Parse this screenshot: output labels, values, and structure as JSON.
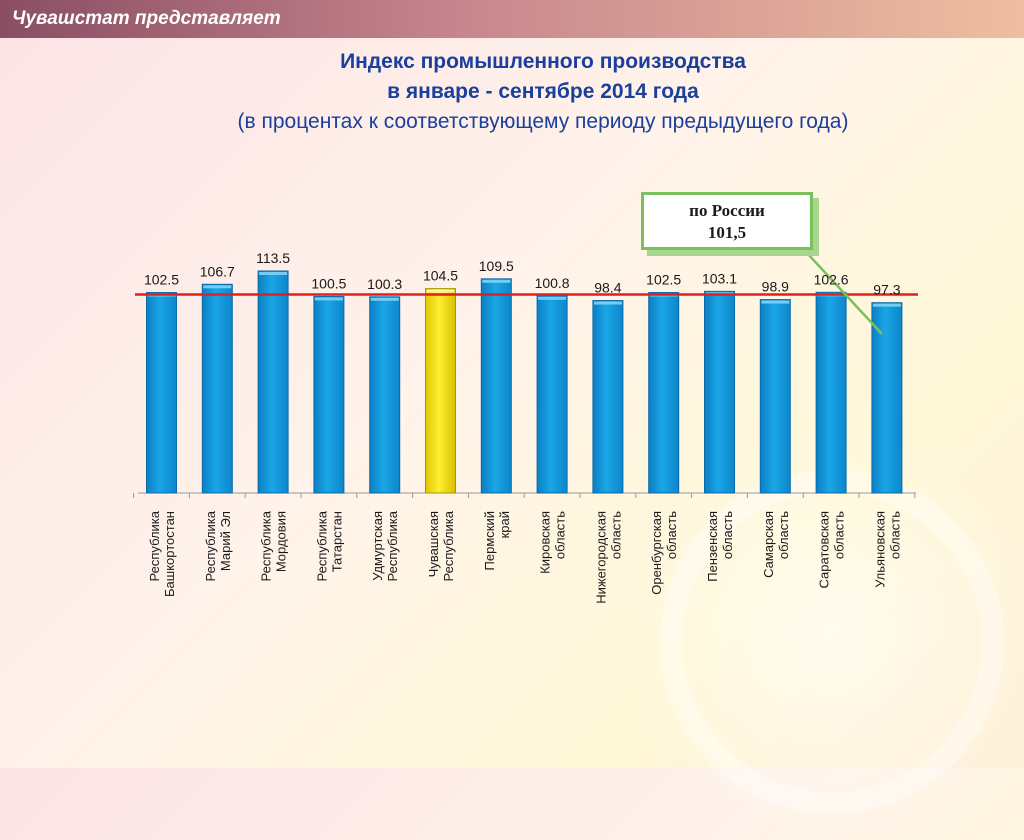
{
  "header": {
    "title": "Чувашстат представляет"
  },
  "titles": {
    "line1": "Индекс промышленного производства",
    "line2": "в январе - сентябре 2014 года",
    "line3": "(в процентах к соответствующему периоду предыдущего года)"
  },
  "russia_callout": {
    "label": "по России",
    "value": "101,5"
  },
  "colors": {
    "bar": "#1aa6e6",
    "highlight_bar": "#ffee33",
    "reference_line": "#e02020",
    "title": "#1a3f9c"
  },
  "chart_data": {
    "type": "bar",
    "categories": [
      [
        "Республика",
        "Башкортостан"
      ],
      [
        "Республика",
        "Марий Эл"
      ],
      [
        "Республика",
        "Мордовия"
      ],
      [
        "Республика",
        "Татарстан"
      ],
      [
        "Удмуртская",
        "Республика"
      ],
      [
        "Чувашская",
        "Республика"
      ],
      [
        "Пермский",
        "край"
      ],
      [
        "Кировская",
        "область"
      ],
      [
        "Нижегородская",
        "область"
      ],
      [
        "Оренбургская",
        "область"
      ],
      [
        "Пензенская",
        "область"
      ],
      [
        "Самарская",
        "область"
      ],
      [
        "Саратовская",
        "область"
      ],
      [
        "Ульяновская",
        "область"
      ]
    ],
    "values": [
      102.5,
      106.7,
      113.5,
      100.5,
      100.3,
      104.5,
      109.5,
      100.8,
      98.4,
      102.5,
      103.1,
      98.9,
      102.6,
      97.3
    ],
    "value_labels": [
      "102.5",
      "106.7",
      "113.5",
      "100.5",
      "100.3",
      "104.5",
      "109.5",
      "100.8",
      "98.4",
      "102.5",
      "103.1",
      "98.9",
      "102.6",
      "97.3"
    ],
    "highlight_index": 5,
    "reference_value": 101.5,
    "title": "Индекс промышленного производства в январе - сентябре 2014 года",
    "subtitle": "(в процентах к соответствующему периоду предыдущего года)",
    "xlabel": "",
    "ylabel": "",
    "grid": false,
    "legend": "none"
  }
}
